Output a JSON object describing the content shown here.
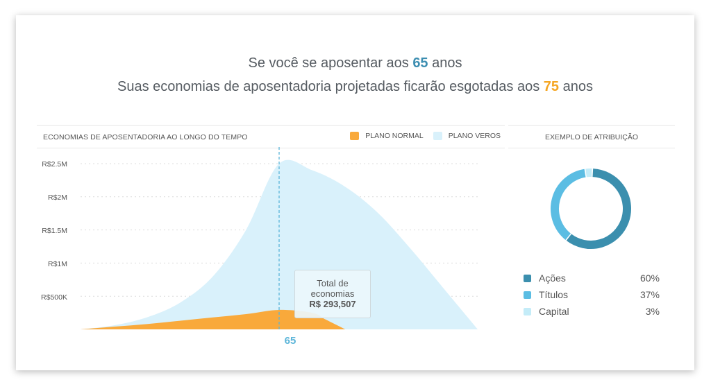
{
  "headline": {
    "line1_pre": "Se você se aposentar aos ",
    "line1_age": "65",
    "line1_post": " anos",
    "line2_pre": "Suas economias de aposentadoria projetadas ficarão esgotadas aos ",
    "line2_age": "75",
    "line2_post": " anos"
  },
  "colors": {
    "normal": "#f9a93b",
    "veros": "#d9f1fb",
    "marker": "#5bb5d9",
    "acoes": "#3b8fae",
    "titulos": "#5bbde3",
    "capital": "#c4ecf8"
  },
  "chart_data": {
    "type": "area",
    "title": "ECONOMIAS DE APOSENTADORIA AO LONGO DO TEMPO",
    "ytick_labels": [
      "R$2.5M",
      "R$2M",
      "R$1.5M",
      "R$1M",
      "R$500K"
    ],
    "yticks": [
      2500000,
      2000000,
      1500000,
      1000000,
      500000
    ],
    "ylim": [
      0,
      2500000
    ],
    "marker_label": "65",
    "marker_x": 65,
    "grid": true,
    "legend_position": "top-right",
    "series": [
      {
        "name": "PLANO VEROS",
        "x": [
          35,
          40,
          45,
          50,
          55,
          60,
          65,
          70,
          75,
          80,
          85,
          90,
          95
        ],
        "values": [
          0,
          60000,
          180000,
          400000,
          800000,
          1500000,
          2500000,
          2400000,
          2150000,
          1750000,
          1200000,
          600000,
          0
        ]
      },
      {
        "name": "PLANO NORMAL",
        "x": [
          35,
          40,
          45,
          50,
          55,
          60,
          65,
          70,
          72,
          75
        ],
        "values": [
          0,
          40000,
          80000,
          130000,
          180000,
          230000,
          293507,
          250000,
          150000,
          0
        ]
      }
    ],
    "tooltip": {
      "label_line1": "Total de",
      "label_line2": "economias",
      "value": "R$ 293,507"
    }
  },
  "allocation": {
    "title": "EXEMPLO DE ATRIBUIÇÃO",
    "items": [
      {
        "name": "Ações",
        "pct": "60%",
        "value": 60,
        "color_key": "acoes"
      },
      {
        "name": "Títulos",
        "pct": "37%",
        "value": 37,
        "color_key": "titulos"
      },
      {
        "name": "Capital",
        "pct": "3%",
        "value": 3,
        "color_key": "capital"
      }
    ]
  }
}
